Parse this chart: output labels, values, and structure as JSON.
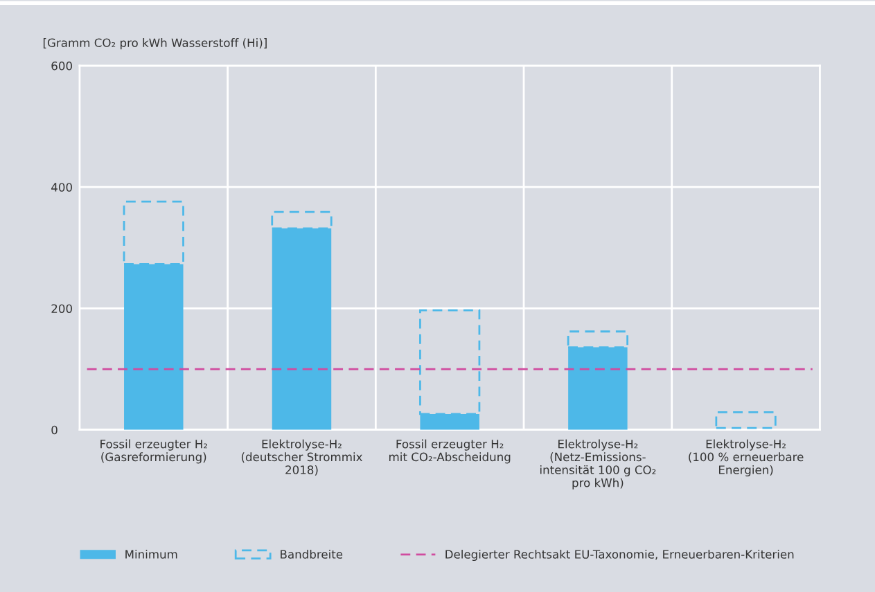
{
  "chart_data": {
    "type": "bar",
    "ylabel": "[Gramm CO₂ pro kWh Wasserstoff (Hi)]",
    "categories": [
      "Fossil erzeugter H₂\n(Gasreformierung)",
      "Elektrolyse-H₂\n(deutscher Strommix\n2018)",
      "Fossil erzeugter H₂\nmit CO₂-Abscheidung",
      "Elektrolyse-H₂\n(Netz-Emissions-\nintensität 100 g CO₂\npro kWh)",
      "Elektrolyse-H₂\n(100 % erneuerbare\nEnergien)"
    ],
    "series": [
      {
        "name": "Minimum",
        "color": "#4db8e8",
        "values": [
          273,
          332,
          26,
          136,
          0
        ]
      },
      {
        "name": "Bandbreite",
        "color": "#4db8e8",
        "line_style": "dashed",
        "base": [
          273,
          332,
          26,
          136,
          3
        ],
        "values": [
          103,
          27,
          171,
          26,
          26
        ]
      }
    ],
    "ylim": [
      0,
      600
    ],
    "yticks": [
      0,
      200,
      400,
      600
    ],
    "ref_lines": [
      {
        "axis": "y",
        "value": 100,
        "label": "Delegierter Rechtsakt EU-Taxonomie, Erneuerbaren-Kriterien",
        "color": "#d04c9f",
        "line_style": "dashed"
      }
    ],
    "grid": true,
    "legend": "bottom"
  }
}
